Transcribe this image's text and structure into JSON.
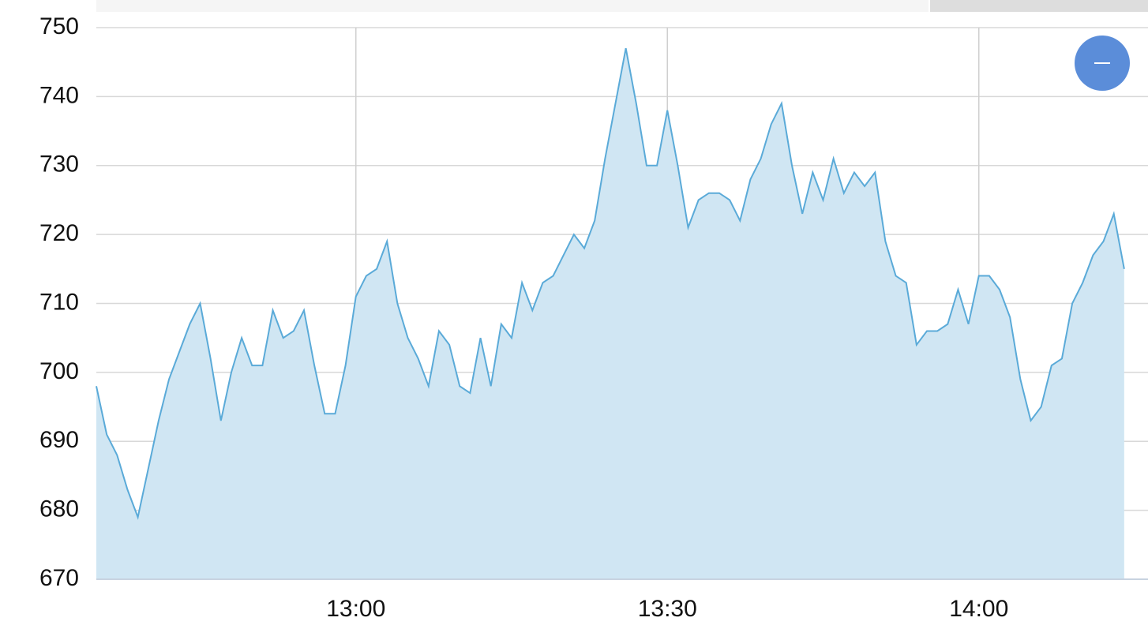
{
  "chart_data": {
    "type": "area",
    "x": [
      "12:35",
      "12:36",
      "12:37",
      "12:38",
      "12:39",
      "12:40",
      "12:41",
      "12:42",
      "12:43",
      "12:44",
      "12:45",
      "12:46",
      "12:47",
      "12:48",
      "12:49",
      "12:50",
      "12:51",
      "12:52",
      "12:53",
      "12:54",
      "12:55",
      "12:56",
      "12:57",
      "12:58",
      "12:59",
      "13:00",
      "13:01",
      "13:02",
      "13:03",
      "13:04",
      "13:05",
      "13:06",
      "13:07",
      "13:08",
      "13:09",
      "13:10",
      "13:11",
      "13:12",
      "13:13",
      "13:14",
      "13:15",
      "13:16",
      "13:17",
      "13:18",
      "13:19",
      "13:20",
      "13:21",
      "13:22",
      "13:23",
      "13:24",
      "13:25",
      "13:26",
      "13:27",
      "13:28",
      "13:29",
      "13:30",
      "13:31",
      "13:32",
      "13:33",
      "13:34",
      "13:35",
      "13:36",
      "13:37",
      "13:38",
      "13:39",
      "13:40",
      "13:41",
      "13:42",
      "13:43",
      "13:44",
      "13:45",
      "13:46",
      "13:47",
      "13:48",
      "13:49",
      "13:50",
      "13:51",
      "13:52",
      "13:53",
      "13:54",
      "13:55",
      "13:56",
      "13:57",
      "13:58",
      "13:59",
      "14:00",
      "14:01",
      "14:02",
      "14:03",
      "14:04",
      "14:05",
      "14:06",
      "14:07",
      "14:08",
      "14:09",
      "14:10",
      "14:11",
      "14:12",
      "14:13",
      "14:14"
    ],
    "values": [
      698,
      691,
      688,
      683,
      679,
      686,
      693,
      699,
      703,
      707,
      710,
      702,
      693,
      700,
      705,
      701,
      701,
      709,
      705,
      706,
      709,
      701,
      694,
      694,
      701,
      711,
      714,
      715,
      719,
      710,
      705,
      702,
      698,
      706,
      704,
      698,
      697,
      705,
      698,
      707,
      705,
      713,
      709,
      713,
      714,
      717,
      720,
      718,
      722,
      731,
      739,
      747,
      739,
      730,
      730,
      738,
      730,
      721,
      725,
      726,
      726,
      725,
      722,
      728,
      731,
      736,
      739,
      730,
      723,
      729,
      725,
      731,
      726,
      729,
      727,
      729,
      719,
      714,
      713,
      704,
      706,
      706,
      707,
      712,
      707,
      714,
      714,
      712,
      708,
      699,
      693,
      695,
      701,
      702,
      710,
      713,
      717,
      719,
      723,
      715
    ],
    "color": "#5aaad8",
    "fill": "#d0e6f3",
    "xlim": [
      "12:35",
      "14:15"
    ],
    "xticks": [
      "13:00",
      "13:30",
      "14:00"
    ],
    "ylim": [
      670,
      750
    ],
    "yticks": [
      670,
      680,
      690,
      700,
      710,
      720,
      730,
      740,
      750
    ],
    "grid": true
  }
}
